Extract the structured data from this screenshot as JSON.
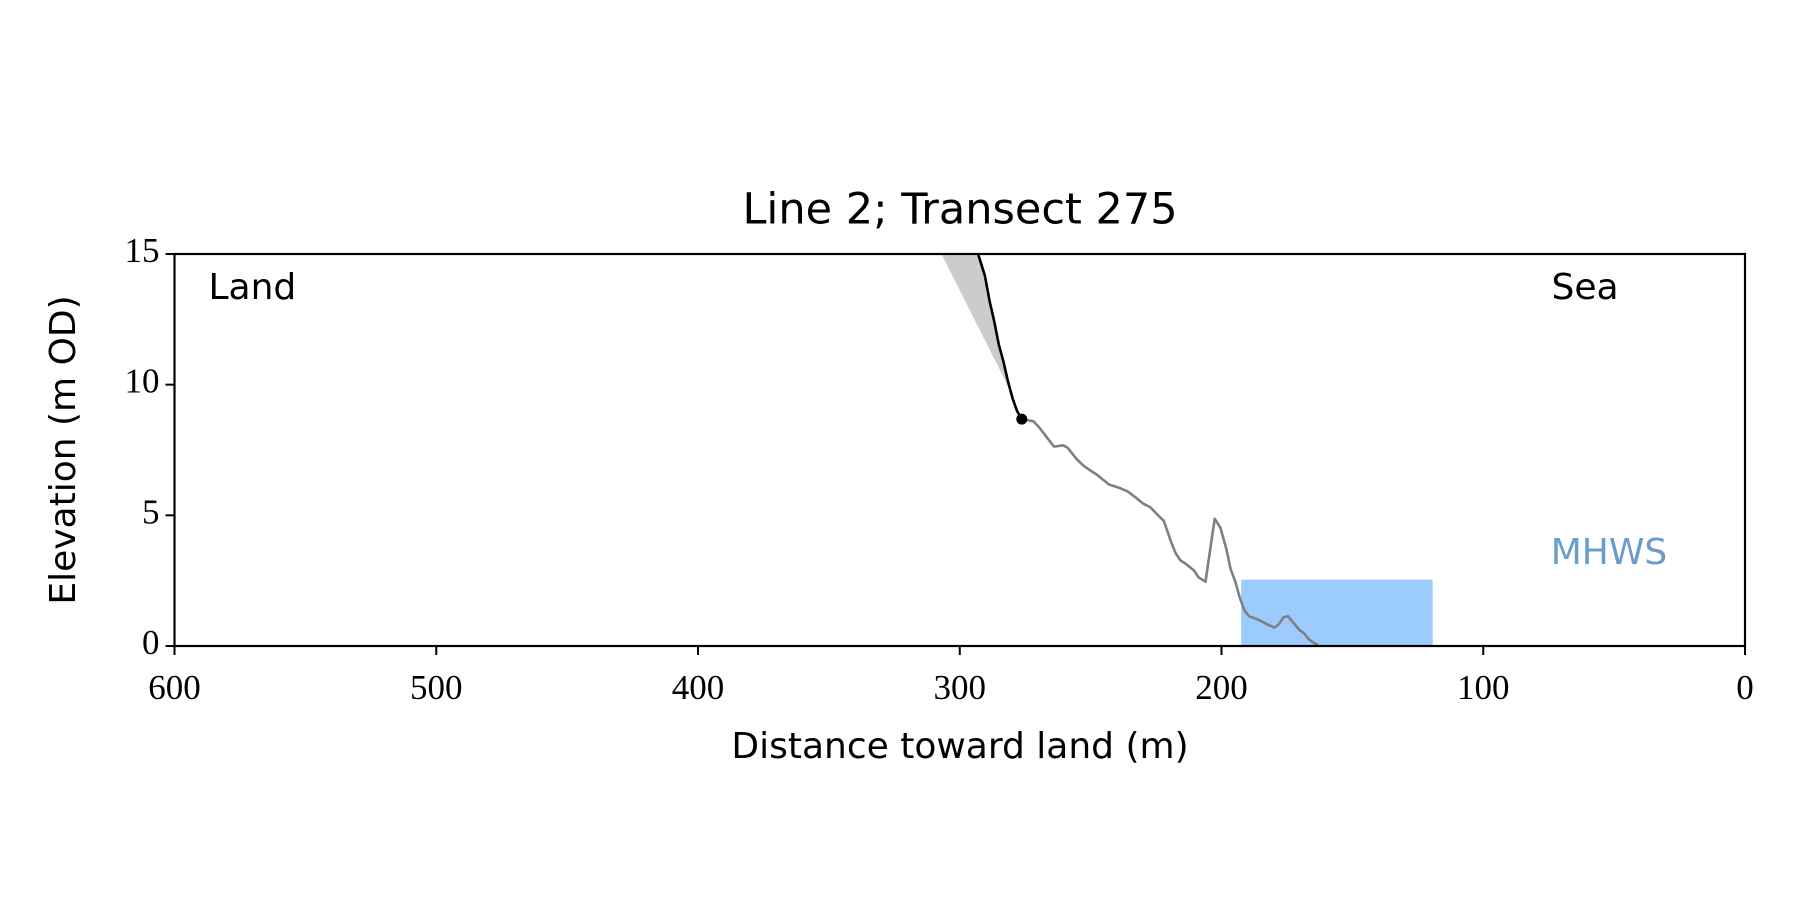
{
  "chart_data": {
    "type": "line",
    "title": "Line 2; Transect 275",
    "xlabel": "Distance toward land (m)",
    "ylabel": "Elevation (m OD)",
    "xlim": [
      600,
      0
    ],
    "ylim": [
      0,
      15
    ],
    "xticks": [
      600,
      500,
      400,
      300,
      200,
      100,
      0
    ],
    "yticks": [
      0,
      5,
      10,
      15
    ],
    "annotations": [
      "Land",
      "Sea"
    ],
    "bands": [
      {
        "label": "MHWS",
        "color": "#9ccbfd",
        "label_color": "#6c9ccc",
        "x": [
          192.5,
          119.3
        ],
        "values": [
          0,
          2.54
        ]
      }
    ],
    "areas": [
      {
        "color": "#cccccc",
        "x": [
          307.0,
          293.0,
          290.4,
          288.6,
          286.8,
          285.1,
          283.3,
          281.6,
          280.7
        ],
        "values": [
          15,
          15,
          14.17,
          13.2,
          12.41,
          11.54,
          10.88,
          10.13,
          9.78
        ]
      }
    ],
    "series": [
      {
        "color": "#808080",
        "x": [
          276.3,
          271.9,
          269.7,
          266.7,
          264.0,
          260.5,
          258.8,
          255.3,
          252.6,
          250.0,
          247.4,
          244.7,
          243.0,
          239.0,
          235.9,
          232.5,
          229.8,
          227.2,
          224.6,
          222.0,
          219.3,
          217.5,
          215.8,
          213.2,
          210.5,
          208.8,
          206.1,
          204.4,
          202.6,
          200.4,
          198.2,
          196.5,
          194.7,
          193.0,
          191.2,
          189.5,
          186.0,
          182.5,
          179.8,
          178.1,
          176.3,
          174.6,
          172.8,
          170.2,
          168.4,
          166.7,
          164.9,
          163.2
        ],
        "values": [
          8.68,
          8.6,
          8.37,
          7.98,
          7.63,
          7.68,
          7.59,
          7.15,
          6.89,
          6.71,
          6.54,
          6.32,
          6.18,
          6.05,
          5.92,
          5.66,
          5.44,
          5.31,
          5.04,
          4.78,
          3.99,
          3.55,
          3.29,
          3.11,
          2.89,
          2.63,
          2.46,
          3.64,
          4.87,
          4.52,
          3.73,
          2.94,
          2.46,
          1.84,
          1.36,
          1.14,
          1.01,
          0.83,
          0.7,
          0.83,
          1.1,
          1.14,
          0.92,
          0.61,
          0.48,
          0.26,
          0.13,
          0.04
        ]
      },
      {
        "color": "#000000",
        "x": [
          293.0,
          290.4,
          288.6,
          286.8,
          285.1,
          283.3,
          281.6,
          279.8,
          278.1,
          276.3
        ],
        "values": [
          15,
          14.17,
          13.2,
          12.41,
          11.54,
          10.88,
          10.13,
          9.47,
          8.99,
          8.68
        ]
      },
      {
        "color": "#000000",
        "marker": true,
        "x": [
          276.3
        ],
        "values": [
          8.68
        ]
      }
    ]
  }
}
